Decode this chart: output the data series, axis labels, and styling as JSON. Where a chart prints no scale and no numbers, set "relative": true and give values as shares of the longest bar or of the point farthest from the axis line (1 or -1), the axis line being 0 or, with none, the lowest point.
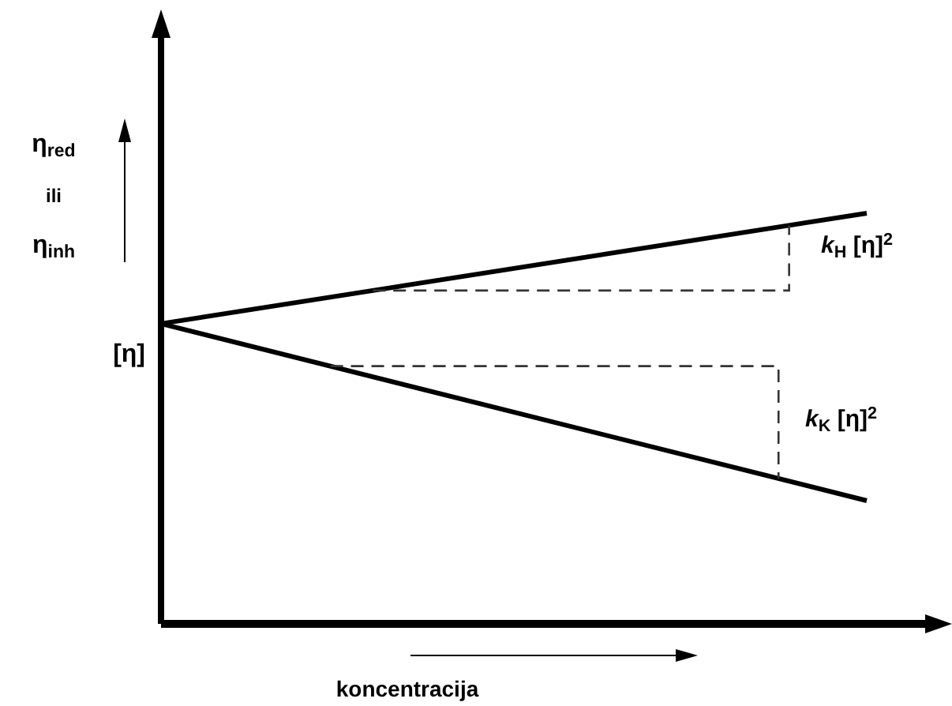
{
  "chart_data": {
    "type": "line",
    "relative": true,
    "xlabel": "koncentracija",
    "ylabel": "η$_{red}$ ili η$_{inh}$",
    "categories": [
      null,
      null
    ],
    "series": [
      {
        "color": "#000000",
        "values": [
          0.731,
          1
        ]
      },
      {
        "color": "#000000",
        "values": [
          0.731,
          0.3
        ]
      }
    ],
    "annotations": [
      "[η]",
      "k$_{H}$ [η]$^{2}$",
      "k$_{K}$ [η]$^{2}$"
    ],
    "marker": "none",
    "line_style": "solid"
  }
}
